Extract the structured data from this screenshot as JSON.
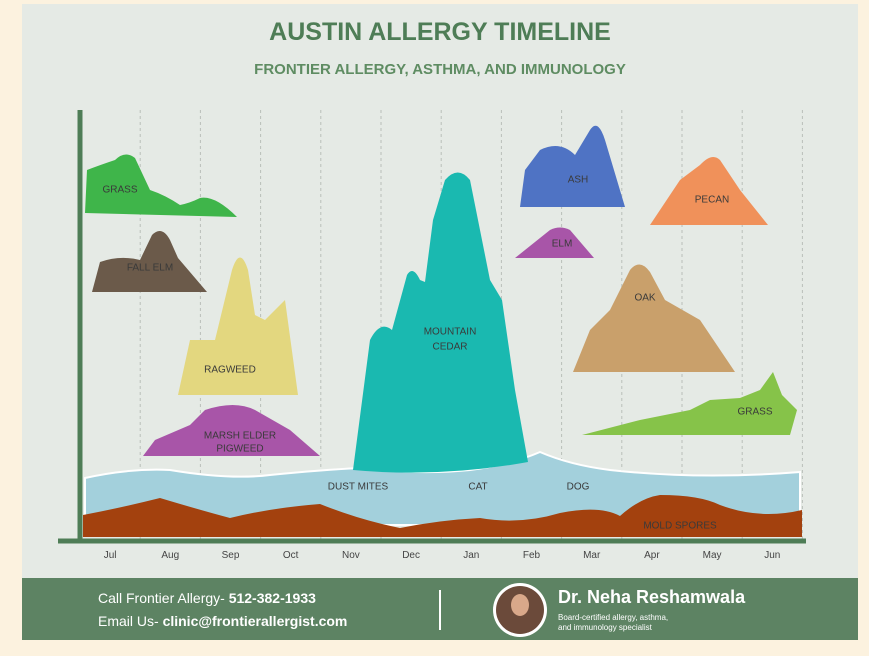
{
  "header": {
    "title": "AUSTIN ALLERGY TIMELINE",
    "subtitle": "FRONTIER ALLERGY, ASTHMA, AND IMMUNOLOGY"
  },
  "months": [
    "Jul",
    "Aug",
    "Sep",
    "Oct",
    "Nov",
    "Dec",
    "Jan",
    "Feb",
    "Mar",
    "Apr",
    "May",
    "Jun"
  ],
  "allergens": {
    "grass_summer": "GRASS",
    "fall_elm": "FALL ELM",
    "ragweed": "RAGWEED",
    "marsh_elder": [
      "MARSH ELDER",
      "PIGWEED"
    ],
    "mountain_cedar": [
      "MOUNTAIN",
      "CEDAR"
    ],
    "ash": "ASH",
    "elm": "ELM",
    "pecan": "PECAN",
    "oak": "OAK",
    "grass_spring": "GRASS",
    "dust_mites": "DUST MITES",
    "cat": "CAT",
    "dog": "DOG",
    "mold_spores": "MOLD SPORES"
  },
  "footer": {
    "call_label": "Call Frontier Allergy- ",
    "phone": "512-382-1933",
    "email_label": "Email Us- ",
    "email": "clinic@frontierallergist.com",
    "doctor": "Dr. Neha Reshamwala",
    "credentials": [
      "Board-certified allergy, asthma,",
      "and immunology specialist"
    ]
  }
}
